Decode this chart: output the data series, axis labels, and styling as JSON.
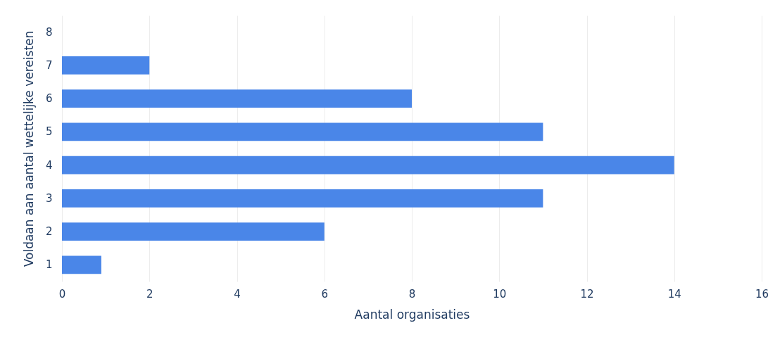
{
  "chart_data": {
    "type": "bar",
    "orientation": "horizontal",
    "xlabel": "Aantal organisaties",
    "ylabel": "Voldaan aan aantal wettelijke vereisten",
    "categories": [
      "8",
      "7",
      "6",
      "5",
      "4",
      "3",
      "2",
      "1"
    ],
    "values": [
      0,
      2,
      8,
      11,
      14,
      11,
      6,
      0.9
    ],
    "color": "#4a86e8",
    "xlim": [
      0,
      16
    ],
    "xticks": [
      0,
      2,
      4,
      6,
      8,
      10,
      12,
      14,
      16
    ],
    "grid": "x"
  }
}
